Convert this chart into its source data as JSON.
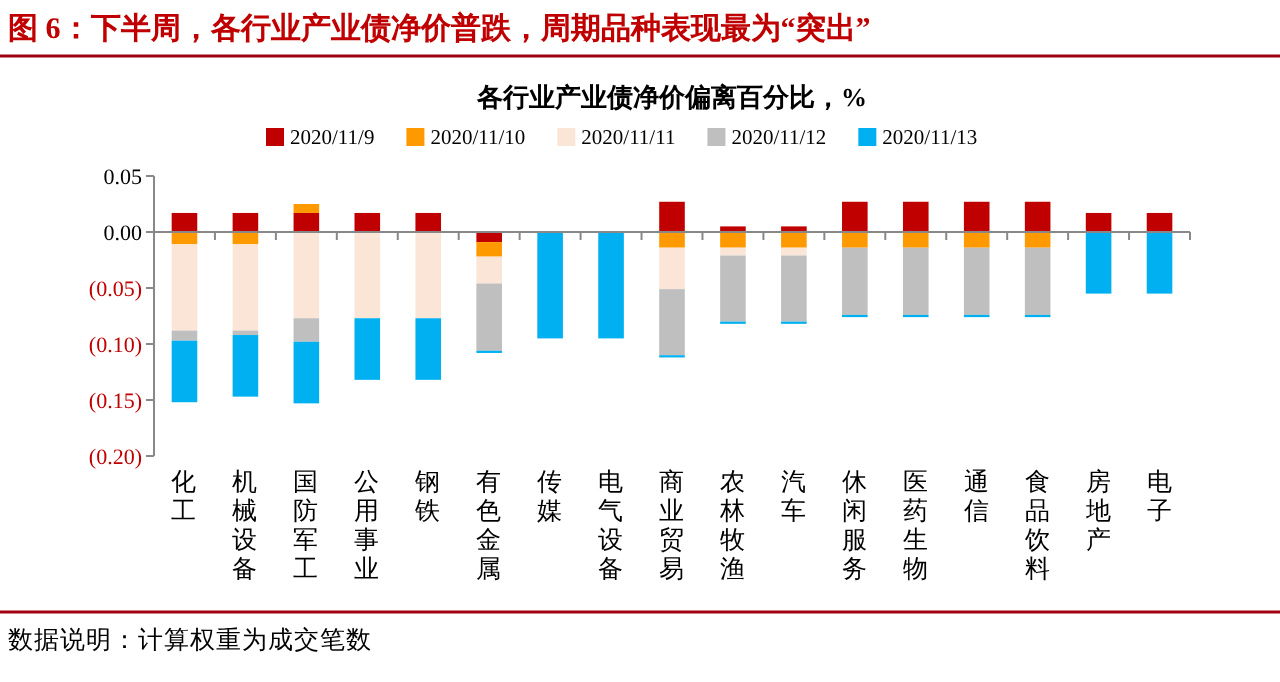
{
  "chart_data": {
    "type": "bar",
    "stacked": true,
    "title": "各行业产业债净价偏离百分比，%",
    "subtitle": "图 6：下半周，各行业产业债净价普跌，周期品种表现最为“突出”",
    "annotations": [
      "数据说明：计算权重为成交笔数"
    ],
    "categories": [
      "化工",
      "机械设备",
      "国防军工",
      "公用事业",
      "钢铁",
      "有色金属",
      "传媒",
      "电气设备",
      "商业贸易",
      "农林牧渔",
      "汽车",
      "休闲服务",
      "医药生物",
      "通信",
      "食品饮料",
      "房地产",
      "电子"
    ],
    "series": [
      {
        "name": "2020/11/9",
        "color": "#c00000",
        "values": [
          0.017,
          0.017,
          0.017,
          0.017,
          0.017,
          -0.009,
          0,
          0,
          0.027,
          0.005,
          0.005,
          0.027,
          0.027,
          0.027,
          0.027,
          0.017,
          0.017
        ]
      },
      {
        "name": "2020/11/10",
        "color": "#ff9900",
        "values": [
          -0.011,
          -0.011,
          0.008,
          0,
          0,
          -0.013,
          0,
          0,
          -0.014,
          -0.014,
          -0.014,
          -0.014,
          -0.014,
          -0.014,
          -0.014,
          0,
          0
        ]
      },
      {
        "name": "2020/11/11",
        "color": "#fbe5d6",
        "values": [
          -0.077,
          -0.077,
          -0.077,
          -0.077,
          -0.077,
          -0.024,
          0,
          0,
          -0.037,
          -0.007,
          -0.007,
          0,
          0,
          0,
          0,
          0,
          0
        ]
      },
      {
        "name": "2020/11/12",
        "color": "#bfbfbf",
        "values": [
          -0.009,
          -0.004,
          -0.021,
          0,
          0,
          -0.06,
          0,
          0,
          -0.059,
          -0.059,
          -0.059,
          -0.06,
          -0.06,
          -0.06,
          -0.06,
          0,
          0
        ]
      },
      {
        "name": "2020/11/13",
        "color": "#00b0f0",
        "values": [
          -0.055,
          -0.055,
          -0.055,
          -0.055,
          -0.055,
          -0.002,
          -0.095,
          -0.095,
          -0.002,
          -0.002,
          -0.002,
          -0.002,
          -0.002,
          -0.002,
          -0.002,
          -0.055,
          -0.055
        ]
      }
    ],
    "ylim": [
      -0.2,
      0.05
    ],
    "yticks": [
      {
        "value": 0.05,
        "label": "0.05"
      },
      {
        "value": 0,
        "label": "0.00"
      },
      {
        "value": -0.05,
        "label": "(0.05)"
      },
      {
        "value": -0.1,
        "label": "(0.10)"
      },
      {
        "value": -0.15,
        "label": "(0.15)"
      },
      {
        "value": -0.2,
        "label": "(0.20)"
      }
    ],
    "legend": "top"
  }
}
